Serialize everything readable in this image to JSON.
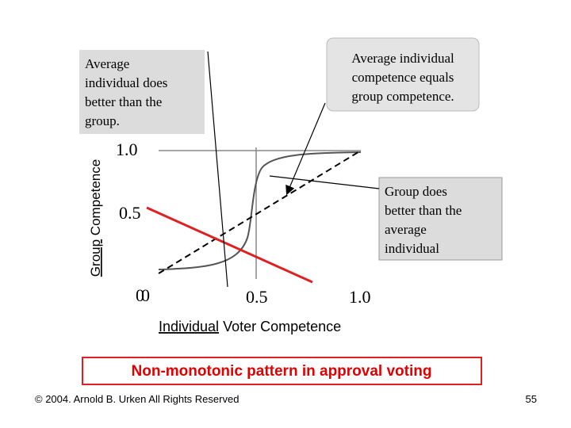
{
  "callouts": {
    "left": {
      "lines": [
        "Average",
        "individual does",
        "better than the",
        "group."
      ]
    },
    "right": {
      "lines": [
        "Average individual",
        "competence equals",
        "group competence."
      ]
    },
    "group": {
      "lines": [
        "Group does",
        "better than the",
        "average",
        "individual"
      ]
    }
  },
  "y_axis": {
    "label": {
      "underlined": "Group",
      "rest": "Competence"
    },
    "ticks": [
      "1.0",
      "0.5",
      "0"
    ]
  },
  "x_axis": {
    "label": {
      "underlined": "Individual",
      "rest": "Voter Competence"
    },
    "ticks": [
      "0",
      "0.5",
      "1.0"
    ]
  },
  "banner": "Non-monotonic pattern in approval voting",
  "footer": {
    "copyright": "© 2004. Arnold B. Urken All Rights Reserved",
    "page": "55"
  }
}
